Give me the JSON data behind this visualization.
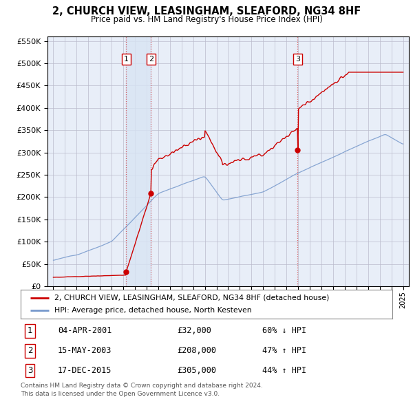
{
  "title": "2, CHURCH VIEW, LEASINGHAM, SLEAFORD, NG34 8HF",
  "subtitle": "Price paid vs. HM Land Registry's House Price Index (HPI)",
  "transactions": [
    {
      "num": 1,
      "date": "04-APR-2001",
      "year": 2001.25,
      "price": 32000,
      "hpi_pct": "60% ↓ HPI"
    },
    {
      "num": 2,
      "date": "15-MAY-2003",
      "year": 2003.37,
      "price": 208000,
      "hpi_pct": "47% ↑ HPI"
    },
    {
      "num": 3,
      "date": "17-DEC-2015",
      "year": 2015.96,
      "price": 305000,
      "hpi_pct": "44% ↑ HPI"
    }
  ],
  "legend_line1": "2, CHURCH VIEW, LEASINGHAM, SLEAFORD, NG34 8HF (detached house)",
  "legend_line2": "HPI: Average price, detached house, North Kesteven",
  "footnote1": "Contains HM Land Registry data © Crown copyright and database right 2024.",
  "footnote2": "This data is licensed under the Open Government Licence v3.0.",
  "ylim": [
    0,
    560000
  ],
  "yticks": [
    0,
    50000,
    100000,
    150000,
    200000,
    250000,
    300000,
    350000,
    400000,
    450000,
    500000,
    550000
  ],
  "xlim": [
    1994.5,
    2025.5
  ],
  "red_color": "#cc0000",
  "blue_color": "#7799cc",
  "background_color": "#e8eef8",
  "grid_color": "#bbbbcc",
  "span_color": "#d8e4f4"
}
